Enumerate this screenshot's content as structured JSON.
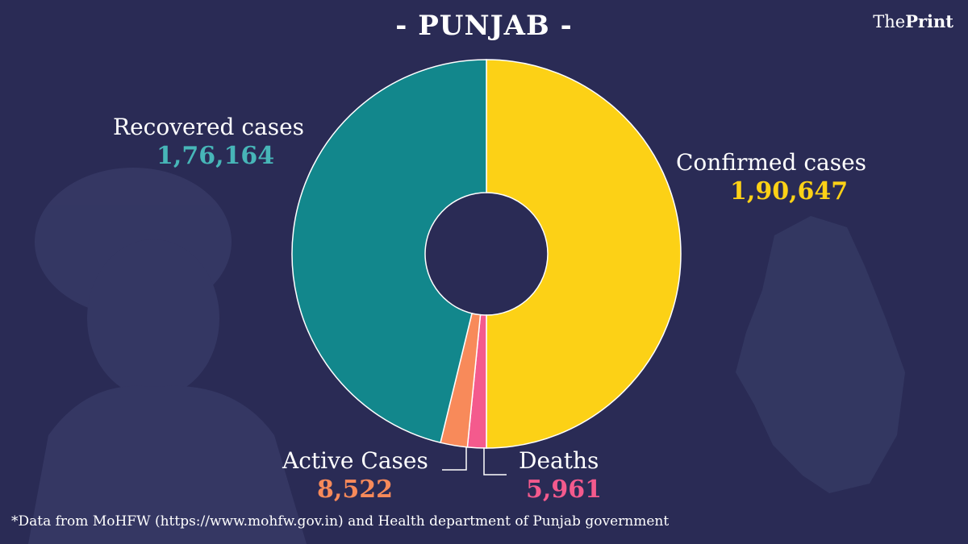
{
  "header": {
    "title": "- PUNJAB -",
    "brand_the": "The",
    "brand_print": "Print"
  },
  "chart_data": {
    "type": "pie",
    "donut": true,
    "slices": [
      {
        "label": "Confirmed cases",
        "value": 190647,
        "display": "1,90,647",
        "color": "#fcd116"
      },
      {
        "label": "Deaths",
        "value": 5961,
        "display": "5,961",
        "color": "#f45a8d"
      },
      {
        "label": "Active Cases",
        "value": 8522,
        "display": "8,522",
        "color": "#f88a5a"
      },
      {
        "label": "Recovered cases",
        "value": 176164,
        "display": "1,76,164",
        "color": "#12878c"
      }
    ]
  },
  "labels": {
    "recovered": {
      "name": "Recovered cases",
      "value": "1,76,164",
      "color": "#47b6b8"
    },
    "confirmed": {
      "name": "Confirmed cases",
      "value": "1,90,647",
      "color": "#fcd116"
    },
    "active": {
      "name": "Active Cases",
      "value": "8,522",
      "color": "#f88a5a"
    },
    "deaths": {
      "name": "Deaths",
      "value": "5,961",
      "color": "#f45a8d"
    }
  },
  "footnote": "*Data from MoHFW (https://www.mohfw.gov.in)  and Health department of  Punjab government"
}
